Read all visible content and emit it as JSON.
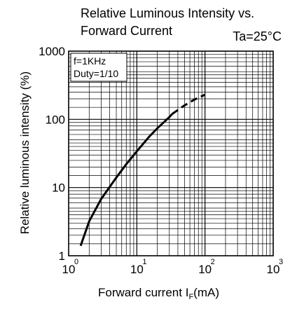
{
  "chart_data": {
    "type": "line",
    "title_line1": "Relative Luminous Intensity vs.",
    "title_line2": "Forward Current",
    "condition": "Ta=25°C",
    "xlabel": "Forward current I",
    "xlabel_sub": "F",
    "xlabel_unit": "(mA)",
    "ylabel": "Relative luminous intensity (%)",
    "x_scale": "log",
    "y_scale": "log",
    "xlim": [
      1,
      1000
    ],
    "ylim": [
      1,
      1000
    ],
    "x_ticks": [
      {
        "base": "10",
        "exp": "0"
      },
      {
        "base": "10",
        "exp": "1"
      },
      {
        "base": "10",
        "exp": "2"
      },
      {
        "base": "10",
        "exp": "3"
      }
    ],
    "y_ticks": [
      "1",
      "10",
      "100",
      "1000"
    ],
    "legend": {
      "line1": "f=1KHz",
      "line2": "Duty=1/10"
    },
    "grid": true,
    "series": [
      {
        "style": "solid",
        "x": [
          1.5,
          2,
          3,
          5,
          7,
          10,
          15,
          20,
          30,
          33
        ],
        "y": [
          1.4,
          3.2,
          6.8,
          14,
          22,
          34,
          55,
          74,
          108,
          120
        ]
      },
      {
        "style": "dashed",
        "x": [
          33,
          50,
          70,
          100
        ],
        "y": [
          120,
          160,
          195,
          230
        ]
      }
    ]
  }
}
